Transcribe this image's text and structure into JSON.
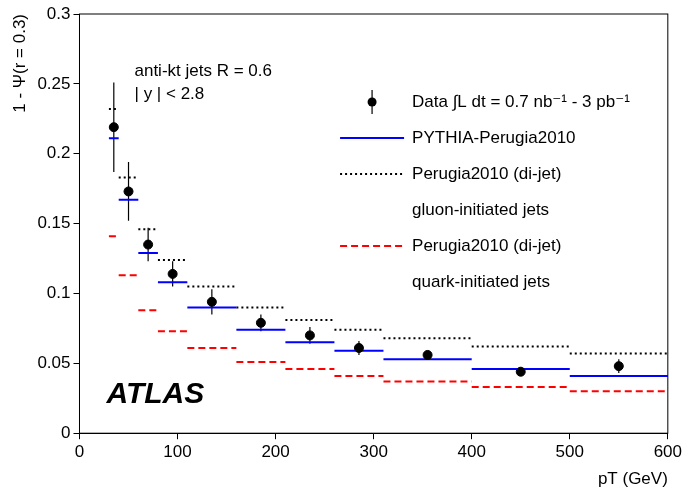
{
  "chart_data": {
    "type": "scatter",
    "x_label": "pT (GeV)",
    "y_label": "1 - Ψ(r = 0.3)",
    "annotations": [
      "anti-kt jets R = 0.6",
      "| y | < 2.8",
      "ATLAS"
    ],
    "bins": [
      30,
      40,
      60,
      80,
      110,
      160,
      210,
      260,
      310,
      400,
      500,
      600
    ],
    "x": [
      35,
      50,
      70,
      95,
      135,
      185,
      235,
      285,
      355,
      450,
      550
    ],
    "series": [
      {
        "name": "Data ∫L dt = 0.7 nb⁻¹ - 3 pb⁻¹",
        "type": "scatter",
        "marker": "circle",
        "color": "#000000",
        "values": [
          0.219,
          0.173,
          0.135,
          0.114,
          0.094,
          0.079,
          0.07,
          0.061,
          0.056,
          0.044,
          0.048
        ],
        "errors": [
          0.032,
          0.021,
          0.012,
          0.009,
          0.009,
          0.006,
          0.006,
          0.005,
          0.003,
          0.003,
          0.005
        ]
      },
      {
        "name": "PYTHIA-Perugia2010",
        "type": "step",
        "line_style": "solid",
        "color": "#0000ff",
        "values": [
          0.211,
          0.167,
          0.129,
          0.108,
          0.09,
          0.074,
          0.065,
          0.059,
          0.053,
          0.046,
          0.041
        ]
      },
      {
        "name": "Perugia2010 (di-jet)\ngluon-initiated jets",
        "type": "step",
        "line_style": "dotted",
        "color": "#000000",
        "values": [
          0.232,
          0.183,
          0.146,
          0.124,
          0.105,
          0.09,
          0.081,
          0.074,
          0.068,
          0.062,
          0.057
        ]
      },
      {
        "name": "Perugia2010 (di-jet)\nquark-initiated jets",
        "type": "step",
        "line_style": "dashed",
        "color": "#ff0000",
        "values": [
          0.141,
          0.113,
          0.088,
          0.073,
          0.061,
          0.051,
          0.046,
          0.041,
          0.037,
          0.033,
          0.03
        ]
      }
    ],
    "xlim": [
      0,
      600
    ],
    "xticks": [
      0,
      100,
      200,
      300,
      400,
      500,
      600
    ],
    "ylim": [
      0,
      0.3
    ],
    "yticks": [
      0,
      0.05,
      0.1,
      0.15,
      0.2,
      0.25,
      0.3
    ],
    "grid": false,
    "legend": "top-right"
  }
}
